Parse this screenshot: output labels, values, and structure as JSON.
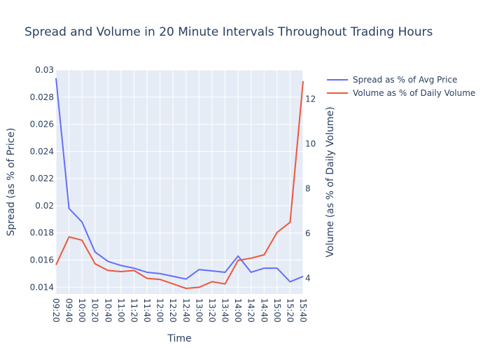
{
  "chart_data": {
    "type": "line",
    "title": "Spread and Volume in 20 Minute Intervals Throughout Trading Hours",
    "xlabel": "Time",
    "ylabel": "Spread (as % of Price)",
    "y2label": "Volume (as % of Daily Volume)",
    "categories": [
      "09:20",
      "09:40",
      "10:00",
      "10:20",
      "10:40",
      "11:00",
      "11:20",
      "11:40",
      "12:00",
      "12:20",
      "12:40",
      "13:00",
      "13:20",
      "13:40",
      "14:00",
      "14:20",
      "14:40",
      "15:00",
      "15:20",
      "15:40"
    ],
    "ylim": [
      0.0135,
      0.03
    ],
    "y2lim": [
      3.3,
      13.3
    ],
    "yticks": [
      "0.014",
      "0.016",
      "0.018",
      "0.02",
      "0.022",
      "0.024",
      "0.026",
      "0.028",
      "0.03"
    ],
    "y2ticks": [
      "4",
      "6",
      "8",
      "10",
      "12"
    ],
    "grid": true,
    "legend_position": "top-right",
    "series": [
      {
        "name": "Spread as % of Avg Price",
        "axis": "left",
        "color": "#636efa",
        "values": [
          0.0294,
          0.0198,
          0.0188,
          0.0166,
          0.0159,
          0.0156,
          0.0154,
          0.0151,
          0.015,
          0.0148,
          0.0146,
          0.0153,
          0.0152,
          0.0151,
          0.0163,
          0.0151,
          0.0154,
          0.0154,
          0.0144,
          0.0148
        ]
      },
      {
        "name": "Volume as % of Daily Volume",
        "axis": "right",
        "color": "#ef553b",
        "values": [
          4.6,
          5.85,
          5.7,
          4.65,
          4.35,
          4.3,
          4.35,
          4.0,
          3.95,
          3.75,
          3.55,
          3.6,
          3.85,
          3.75,
          4.8,
          4.9,
          5.05,
          6.05,
          6.5,
          12.8
        ]
      }
    ]
  }
}
